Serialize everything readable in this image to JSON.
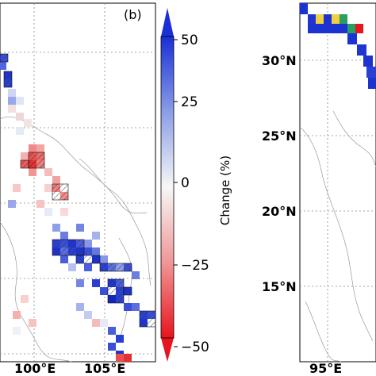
{
  "left_panel": {
    "panel_label": "(b)",
    "lon_labels": [
      "100°E",
      "105°E"
    ]
  },
  "colorbar": {
    "label": "Change (%)",
    "ticks": [
      "50",
      "25",
      "0",
      "−25",
      "−50"
    ],
    "colors": {
      "low": "#e8141e",
      "mid": "#f7f7f7",
      "high": "#1a2fd6"
    }
  },
  "right_panel": {
    "lat_labels": [
      "30°N",
      "25°N",
      "20°N",
      "15°N"
    ],
    "lon_labels": [
      "95°E"
    ]
  }
}
